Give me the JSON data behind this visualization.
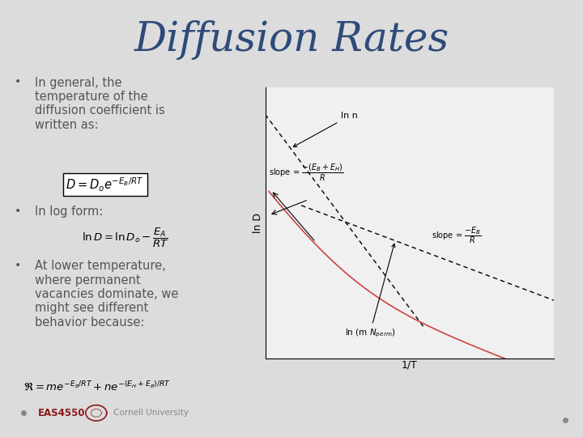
{
  "title": "Diffusion Rates",
  "title_color": "#2E4A7A",
  "title_fontsize": 36,
  "bg_color_top": "#D8D8D8",
  "bg_color_bottom": "#E8E8E8",
  "bullet1": "In general, the\ntemperature of the\ndiffusion coefficient is\nwritten as:",
  "bullet2": "In log form:",
  "bullet3": "At lower temperature,\nwhere permanent\nvacancies dominate, we\nmight see different\nbehavior because:",
  "formula1": "$D = D_o e^{-E_B/RT}$",
  "formula2": "$\\ln D = \\ln D_o - \\dfrac{E_A}{RT}$",
  "formula3": "$\\mathfrak{R} = me^{-E_B/RT} + ne^{-(E_H+E_B)/RT}$",
  "footer_text": "EAS4550",
  "footer_color": "#8B1A1A",
  "text_color": "#555555",
  "bullet_color": "#555555",
  "graph_bg": "#F0F0F0"
}
